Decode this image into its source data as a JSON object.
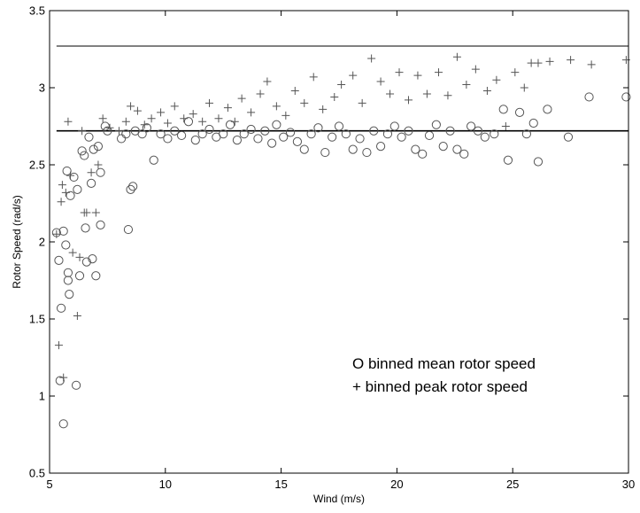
{
  "chart_data": {
    "type": "scatter",
    "title": "",
    "xlabel": "Wind (m/s)",
    "ylabel": "Rotor Speed (rad/s)",
    "xlim": [
      5,
      30
    ],
    "ylim": [
      0.5,
      3.5
    ],
    "xticks": [
      5,
      10,
      15,
      20,
      25,
      30
    ],
    "xtick_labels": [
      "5",
      "10",
      "15",
      "20",
      "25",
      "30"
    ],
    "yticks": [
      0.5,
      1,
      1.5,
      2,
      2.5,
      3,
      3.5
    ],
    "ytick_labels": [
      "0.5",
      "1",
      "1.5",
      "2",
      "2.5",
      "3",
      "3.5"
    ],
    "grid": false,
    "annotations": [
      "O binned mean rotor speed",
      "+ binned peak rotor speed"
    ],
    "reference_lines": [
      {
        "y": 3.27,
        "x_range": [
          5.3,
          30
        ]
      },
      {
        "y": 2.72,
        "x_range": [
          5.3,
          30
        ]
      }
    ],
    "colors": {
      "markers": "#555555",
      "lines": "#000000"
    },
    "series": [
      {
        "marker": "circle",
        "points": [
          [
            5.3,
            2.06
          ],
          [
            5.4,
            1.88
          ],
          [
            5.45,
            1.1
          ],
          [
            5.5,
            1.57
          ],
          [
            5.6,
            0.82
          ],
          [
            5.6,
            2.07
          ],
          [
            5.7,
            1.98
          ],
          [
            5.75,
            2.46
          ],
          [
            5.8,
            1.8
          ],
          [
            5.8,
            1.75
          ],
          [
            5.85,
            1.66
          ],
          [
            5.9,
            2.3
          ],
          [
            6.05,
            2.42
          ],
          [
            6.15,
            1.07
          ],
          [
            6.2,
            2.34
          ],
          [
            6.3,
            1.78
          ],
          [
            6.4,
            2.59
          ],
          [
            6.5,
            2.56
          ],
          [
            6.55,
            2.09
          ],
          [
            6.6,
            1.87
          ],
          [
            6.7,
            2.68
          ],
          [
            6.8,
            2.38
          ],
          [
            6.85,
            1.89
          ],
          [
            6.9,
            2.6
          ],
          [
            7.0,
            1.78
          ],
          [
            7.1,
            2.62
          ],
          [
            7.2,
            2.11
          ],
          [
            7.2,
            2.45
          ],
          [
            7.4,
            2.75
          ],
          [
            7.5,
            2.72
          ],
          [
            8.1,
            2.67
          ],
          [
            8.3,
            2.7
          ],
          [
            8.4,
            2.08
          ],
          [
            8.5,
            2.34
          ],
          [
            8.6,
            2.36
          ],
          [
            8.7,
            2.72
          ],
          [
            9.0,
            2.7
          ],
          [
            9.2,
            2.74
          ],
          [
            9.5,
            2.53
          ],
          [
            9.8,
            2.7
          ],
          [
            10.1,
            2.67
          ],
          [
            10.4,
            2.72
          ],
          [
            10.7,
            2.69
          ],
          [
            11.0,
            2.78
          ],
          [
            11.3,
            2.66
          ],
          [
            11.6,
            2.7
          ],
          [
            11.9,
            2.73
          ],
          [
            12.2,
            2.68
          ],
          [
            12.5,
            2.7
          ],
          [
            12.8,
            2.76
          ],
          [
            13.1,
            2.66
          ],
          [
            13.4,
            2.7
          ],
          [
            13.7,
            2.73
          ],
          [
            14.0,
            2.67
          ],
          [
            14.3,
            2.72
          ],
          [
            14.6,
            2.64
          ],
          [
            14.8,
            2.76
          ],
          [
            15.1,
            2.68
          ],
          [
            15.4,
            2.71
          ],
          [
            15.7,
            2.65
          ],
          [
            16.0,
            2.6
          ],
          [
            16.3,
            2.7
          ],
          [
            16.6,
            2.74
          ],
          [
            16.9,
            2.58
          ],
          [
            17.2,
            2.68
          ],
          [
            17.5,
            2.75
          ],
          [
            17.8,
            2.7
          ],
          [
            18.1,
            2.6
          ],
          [
            18.4,
            2.67
          ],
          [
            18.7,
            2.58
          ],
          [
            19.0,
            2.72
          ],
          [
            19.3,
            2.62
          ],
          [
            19.6,
            2.7
          ],
          [
            19.9,
            2.75
          ],
          [
            20.2,
            2.68
          ],
          [
            20.5,
            2.72
          ],
          [
            20.8,
            2.6
          ],
          [
            21.1,
            2.57
          ],
          [
            21.4,
            2.69
          ],
          [
            21.7,
            2.76
          ],
          [
            22.0,
            2.62
          ],
          [
            22.3,
            2.72
          ],
          [
            22.6,
            2.6
          ],
          [
            22.9,
            2.57
          ],
          [
            23.2,
            2.75
          ],
          [
            23.5,
            2.72
          ],
          [
            23.8,
            2.68
          ],
          [
            24.2,
            2.7
          ],
          [
            24.6,
            2.86
          ],
          [
            24.8,
            2.53
          ],
          [
            25.3,
            2.84
          ],
          [
            25.6,
            2.7
          ],
          [
            25.9,
            2.77
          ],
          [
            26.1,
            2.52
          ],
          [
            26.5,
            2.86
          ],
          [
            27.4,
            2.68
          ],
          [
            28.3,
            2.94
          ],
          [
            29.9,
            2.94
          ]
        ]
      },
      {
        "marker": "plus",
        "points": [
          [
            5.3,
            2.05
          ],
          [
            5.4,
            1.33
          ],
          [
            5.5,
            2.26
          ],
          [
            5.55,
            2.37
          ],
          [
            5.6,
            1.12
          ],
          [
            5.7,
            2.32
          ],
          [
            5.8,
            2.78
          ],
          [
            5.9,
            2.43
          ],
          [
            6.0,
            1.93
          ],
          [
            6.2,
            1.52
          ],
          [
            6.3,
            1.9
          ],
          [
            6.4,
            2.72
          ],
          [
            6.5,
            2.19
          ],
          [
            6.6,
            2.19
          ],
          [
            6.8,
            2.45
          ],
          [
            7.0,
            2.19
          ],
          [
            7.1,
            2.5
          ],
          [
            7.3,
            2.8
          ],
          [
            7.6,
            2.74
          ],
          [
            8.0,
            2.72
          ],
          [
            8.3,
            2.78
          ],
          [
            8.5,
            2.88
          ],
          [
            8.8,
            2.85
          ],
          [
            9.1,
            2.76
          ],
          [
            9.4,
            2.8
          ],
          [
            9.8,
            2.84
          ],
          [
            10.1,
            2.77
          ],
          [
            10.4,
            2.88
          ],
          [
            10.8,
            2.8
          ],
          [
            11.2,
            2.83
          ],
          [
            11.6,
            2.78
          ],
          [
            11.9,
            2.9
          ],
          [
            12.3,
            2.8
          ],
          [
            12.7,
            2.87
          ],
          [
            13.0,
            2.78
          ],
          [
            13.3,
            2.93
          ],
          [
            13.7,
            2.84
          ],
          [
            14.1,
            2.96
          ],
          [
            14.4,
            3.04
          ],
          [
            14.8,
            2.88
          ],
          [
            15.2,
            2.82
          ],
          [
            15.6,
            2.98
          ],
          [
            16.0,
            2.9
          ],
          [
            16.4,
            3.07
          ],
          [
            16.8,
            2.86
          ],
          [
            17.3,
            2.94
          ],
          [
            17.6,
            3.02
          ],
          [
            18.1,
            3.08
          ],
          [
            18.5,
            2.9
          ],
          [
            18.9,
            3.19
          ],
          [
            19.3,
            3.04
          ],
          [
            19.7,
            2.96
          ],
          [
            20.1,
            3.1
          ],
          [
            20.5,
            2.92
          ],
          [
            20.9,
            3.08
          ],
          [
            21.3,
            2.96
          ],
          [
            21.8,
            3.1
          ],
          [
            22.2,
            2.95
          ],
          [
            22.6,
            3.2
          ],
          [
            23.0,
            3.02
          ],
          [
            23.4,
            3.12
          ],
          [
            23.9,
            2.98
          ],
          [
            24.3,
            3.05
          ],
          [
            24.7,
            2.75
          ],
          [
            25.1,
            3.1
          ],
          [
            25.5,
            3.0
          ],
          [
            25.8,
            3.16
          ],
          [
            26.1,
            3.16
          ],
          [
            26.6,
            3.17
          ],
          [
            27.5,
            3.18
          ],
          [
            28.4,
            3.15
          ],
          [
            29.9,
            3.18
          ]
        ]
      }
    ]
  }
}
